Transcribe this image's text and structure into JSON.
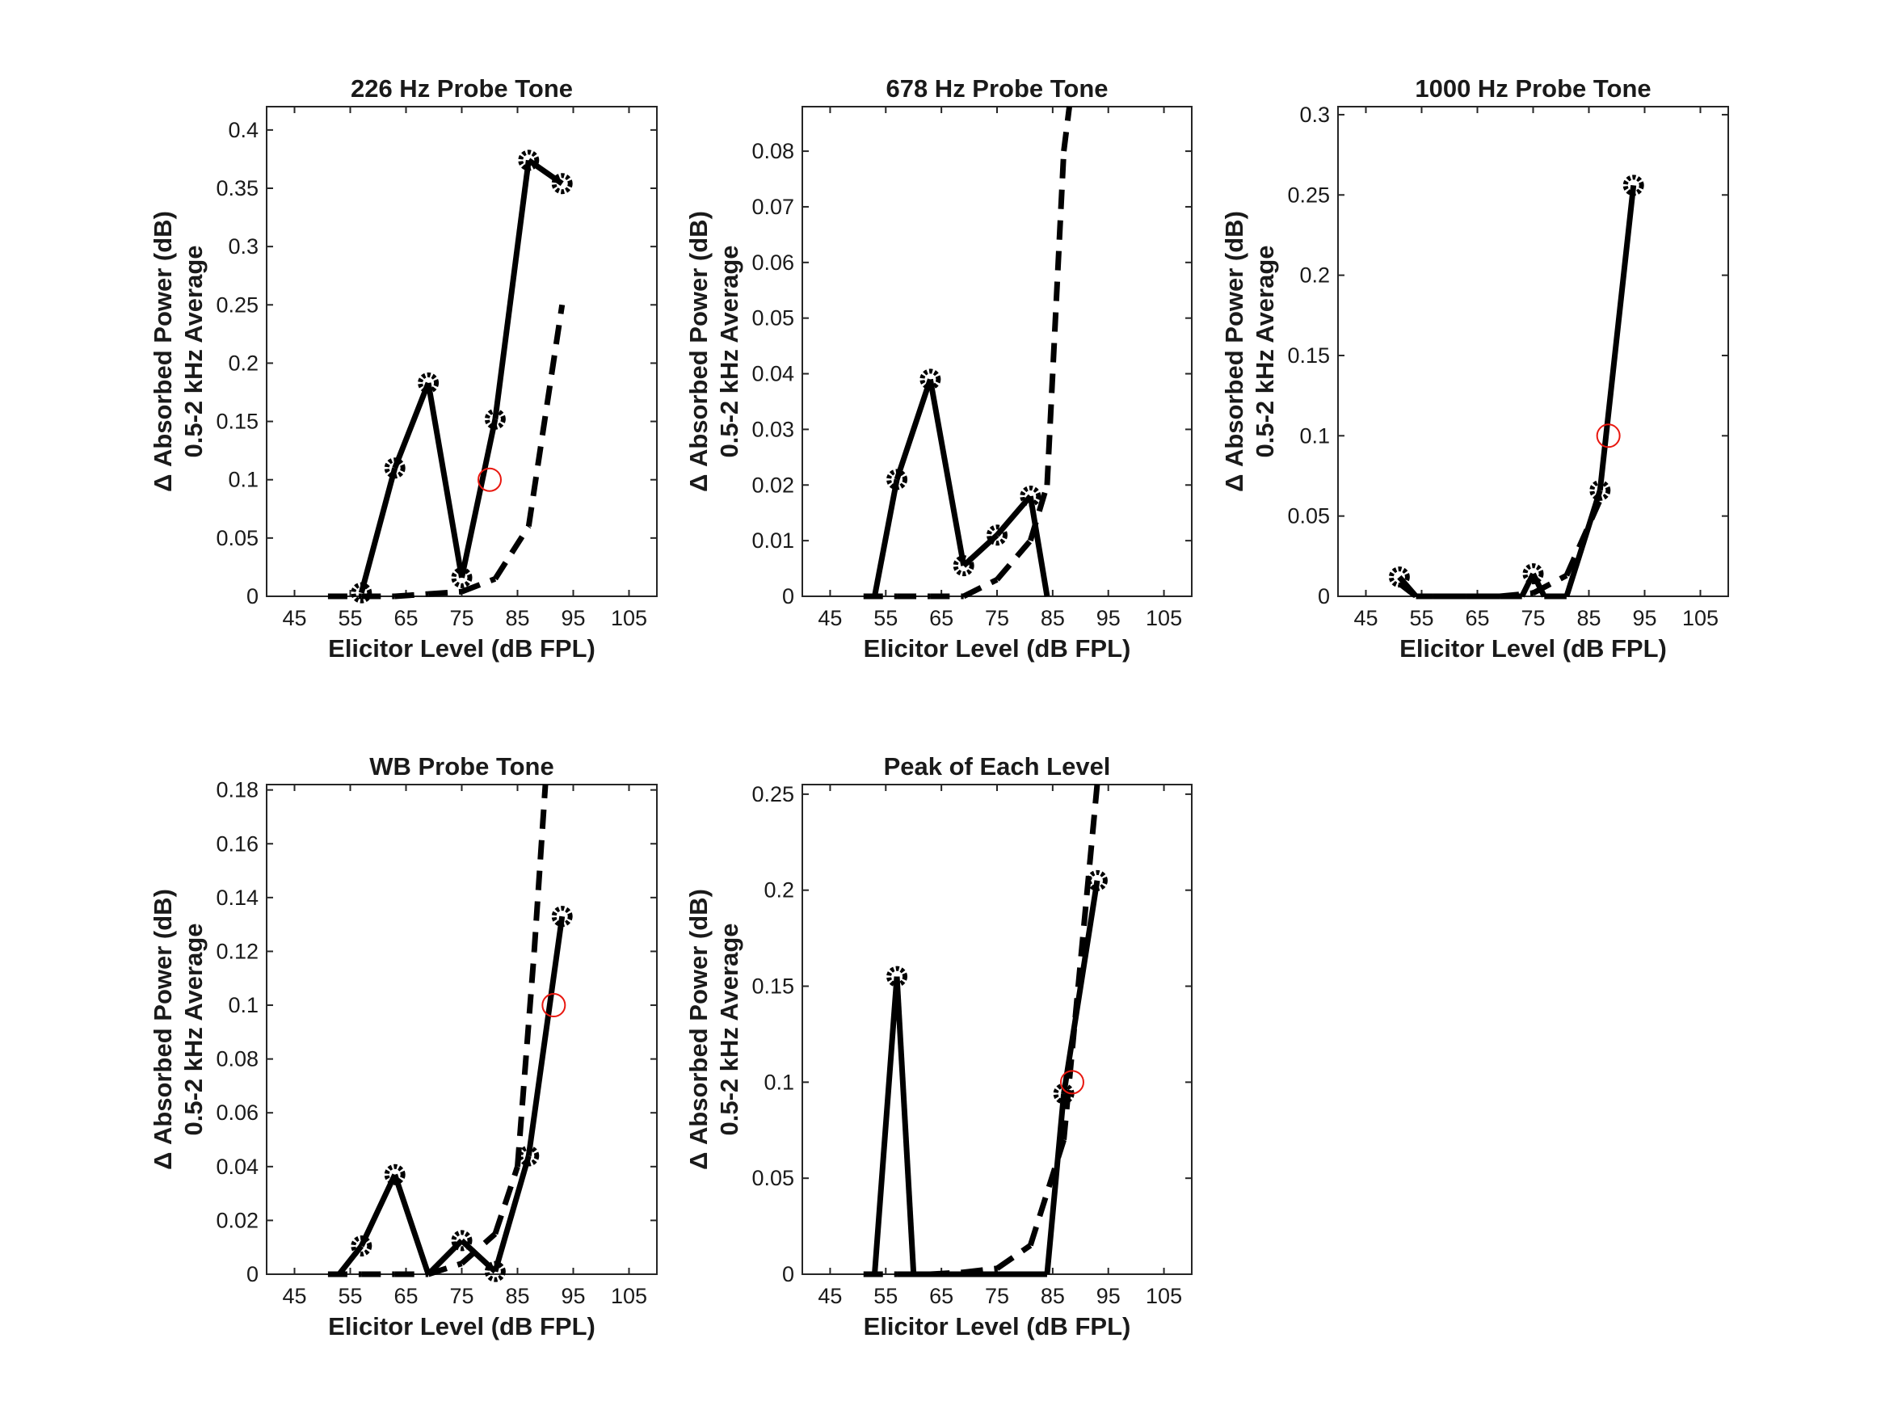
{
  "chart_data": [
    {
      "type": "line",
      "title": "226 Hz Probe Tone",
      "xlabel": "Elicitor Level (dB FPL)",
      "ylabel": [
        "Δ Absorbed Power (dB)",
        "0.5-2 kHz Average"
      ],
      "xlim": [
        40,
        110
      ],
      "ylim": [
        0,
        0.42
      ],
      "xticks": [
        "45",
        "55",
        "65",
        "75",
        "85",
        "95",
        "105"
      ],
      "yticks": [
        "0",
        "0.05",
        "0.1",
        "0.15",
        "0.2",
        "0.25",
        "0.3",
        "0.35",
        "0.4"
      ],
      "grid": false,
      "series": [
        {
          "style": "solid-markers",
          "x": [
            57,
            63,
            69,
            75,
            81,
            87,
            93
          ],
          "y": [
            0.003,
            0.11,
            0.183,
            0.016,
            0.152,
            0.374,
            0.354
          ]
        },
        {
          "style": "dashed",
          "x": [
            51,
            57,
            63,
            69,
            75,
            81,
            87,
            93
          ],
          "y": [
            0,
            0,
            0,
            0.002,
            0.004,
            0.015,
            0.06,
            0.25
          ]
        },
        {
          "style": "threshold-circle",
          "x": [
            80
          ],
          "y": [
            0.1
          ]
        }
      ]
    },
    {
      "type": "line",
      "title": "678 Hz Probe Tone",
      "xlabel": "Elicitor Level (dB FPL)",
      "ylabel": [
        "Δ Absorbed Power (dB)",
        "0.5-2 kHz Average"
      ],
      "xlim": [
        40,
        110
      ],
      "ylim": [
        0,
        0.088
      ],
      "xticks": [
        "45",
        "55",
        "65",
        "75",
        "85",
        "95",
        "105"
      ],
      "yticks": [
        "0",
        "0.01",
        "0.02",
        "0.03",
        "0.04",
        "0.05",
        "0.06",
        "0.07",
        "0.08"
      ],
      "grid": false,
      "series": [
        {
          "style": "solid-markers",
          "x": [
            53,
            57,
            63,
            69,
            75,
            81,
            84
          ],
          "y": [
            0,
            0.021,
            0.039,
            0.0055,
            0.011,
            0.018,
            0
          ]
        },
        {
          "style": "dashed",
          "x": [
            51,
            57,
            63,
            69,
            75,
            81,
            84,
            87,
            88
          ],
          "y": [
            0,
            0,
            0,
            0,
            0.003,
            0.01,
            0.02,
            0.08,
            0.088
          ]
        }
      ]
    },
    {
      "type": "line",
      "title": "1000 Hz Probe Tone",
      "xlabel": "Elicitor Level (dB FPL)",
      "ylabel": [
        "Δ Absorbed Power (dB)",
        "0.5-2 kHz Average"
      ],
      "xlim": [
        40,
        110
      ],
      "ylim": [
        0,
        0.305
      ],
      "xticks": [
        "45",
        "55",
        "65",
        "75",
        "85",
        "95",
        "105"
      ],
      "yticks": [
        "0",
        "0.05",
        "0.1",
        "0.15",
        "0.2",
        "0.25",
        "0.3"
      ],
      "grid": false,
      "series": [
        {
          "style": "solid-markers",
          "x": [
            51,
            54,
            57,
            63,
            69,
            73,
            75,
            77,
            81,
            87,
            93
          ],
          "y": [
            0.012,
            0,
            0,
            0,
            0,
            0,
            0.014,
            0,
            0,
            0.066,
            0.256
          ]
        },
        {
          "style": "dashed",
          "x": [
            51,
            54,
            57,
            63,
            69,
            75,
            81,
            87
          ],
          "y": [
            0.008,
            0,
            0,
            0,
            0,
            0.002,
            0.013,
            0.06
          ]
        },
        {
          "style": "threshold-circle",
          "x": [
            88.5
          ],
          "y": [
            0.1
          ]
        }
      ]
    },
    {
      "type": "line",
      "title": "WB Probe Tone",
      "xlabel": "Elicitor Level (dB FPL)",
      "ylabel": [
        "Δ Absorbed Power (dB)",
        "0.5-2 kHz Average"
      ],
      "xlim": [
        40,
        110
      ],
      "ylim": [
        0,
        0.182
      ],
      "xticks": [
        "45",
        "55",
        "65",
        "75",
        "85",
        "95",
        "105"
      ],
      "yticks": [
        "0",
        "0.02",
        "0.04",
        "0.06",
        "0.08",
        "0.1",
        "0.12",
        "0.14",
        "0.16",
        "0.18"
      ],
      "grid": false,
      "series": [
        {
          "style": "solid-markers",
          "x": [
            53,
            57,
            63,
            69,
            75,
            81,
            87,
            93
          ],
          "y": [
            0,
            0.0105,
            0.037,
            0,
            0.0125,
            0.001,
            0.044,
            0.133
          ]
        },
        {
          "style": "dashed",
          "x": [
            51,
            57,
            63,
            69,
            75,
            81,
            85,
            88,
            90
          ],
          "y": [
            0,
            0,
            0,
            0,
            0.004,
            0.015,
            0.04,
            0.12,
            0.182
          ]
        },
        {
          "style": "threshold-circle",
          "x": [
            91.5
          ],
          "y": [
            0.1
          ]
        }
      ]
    },
    {
      "type": "line",
      "title": "Peak of Each Level",
      "xlabel": "Elicitor Level (dB FPL)",
      "ylabel": [
        "Δ Absorbed Power (dB)",
        "0.5-2 kHz Average"
      ],
      "xlim": [
        40,
        110
      ],
      "ylim": [
        0,
        0.255
      ],
      "xticks": [
        "45",
        "55",
        "65",
        "75",
        "85",
        "95",
        "105"
      ],
      "yticks": [
        "0",
        "0.05",
        "0.1",
        "0.15",
        "0.2",
        "0.25"
      ],
      "grid": false,
      "series": [
        {
          "style": "solid-markers",
          "x": [
            53,
            57,
            60,
            84,
            87,
            93
          ],
          "y": [
            0,
            0.155,
            0,
            0,
            0.094,
            0.205
          ]
        },
        {
          "style": "dashed",
          "x": [
            51,
            57,
            63,
            69,
            75,
            81,
            87,
            93
          ],
          "y": [
            0,
            0,
            0,
            0.001,
            0.003,
            0.015,
            0.07,
            0.255
          ]
        },
        {
          "style": "threshold-circle",
          "x": [
            88.5
          ],
          "y": [
            0.1
          ]
        }
      ]
    }
  ]
}
